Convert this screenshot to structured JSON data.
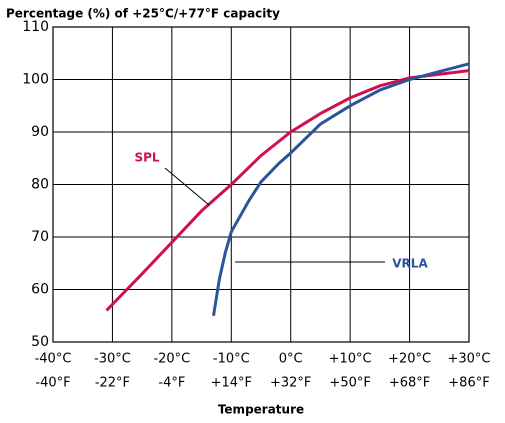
{
  "chart_data": {
    "type": "line",
    "title": "Percentage (%) of +25°C/+77°F capacity",
    "x_label": "Temperature",
    "xlim": [
      -40,
      30
    ],
    "xticks": [
      {
        "value": -40,
        "label": "-40°C"
      },
      {
        "value": -30,
        "label": "-30°C"
      },
      {
        "value": -20,
        "label": "-20°C"
      },
      {
        "value": -10,
        "label": "-10°C"
      },
      {
        "value": 0,
        "label": "0°C"
      },
      {
        "value": 10,
        "label": "+10°C"
      },
      {
        "value": 20,
        "label": "+20°C"
      },
      {
        "value": 30,
        "label": "+30°C"
      }
    ],
    "x2lim": [
      -40,
      86
    ],
    "x2ticks": [
      {
        "value": -40,
        "label": "-40°F"
      },
      {
        "value": -22,
        "label": "-22°F"
      },
      {
        "value": -4,
        "label": "-4°F"
      },
      {
        "value": 14,
        "label": "+14°F"
      },
      {
        "value": 32,
        "label": "+32°F"
      },
      {
        "value": 50,
        "label": "+50°F"
      },
      {
        "value": 68,
        "label": "+68°F"
      },
      {
        "value": 86,
        "label": "+86°F"
      }
    ],
    "ylim": [
      50,
      110
    ],
    "yticks": [
      50,
      60,
      70,
      80,
      90,
      100,
      110
    ],
    "grid": true,
    "series": [
      {
        "name": "SPL",
        "color": "#d0104c",
        "x": [
          -31,
          -25,
          -20,
          -15,
          -10,
          -5,
          0,
          5,
          10,
          15,
          20,
          25,
          30
        ],
        "values": [
          56,
          63,
          69,
          75,
          80,
          85.5,
          90,
          93.5,
          96.5,
          98.8,
          100.3,
          101,
          101.7
        ]
      },
      {
        "name": "VRLA",
        "color": "#2a5599",
        "x": [
          -13,
          -12,
          -11,
          -10,
          -7,
          -5,
          -2,
          0,
          5,
          10,
          15,
          20,
          25,
          30
        ],
        "values": [
          55,
          62,
          67,
          71,
          77,
          80.5,
          84,
          86,
          91.5,
          95,
          98,
          100,
          101.5,
          103
        ]
      }
    ]
  }
}
